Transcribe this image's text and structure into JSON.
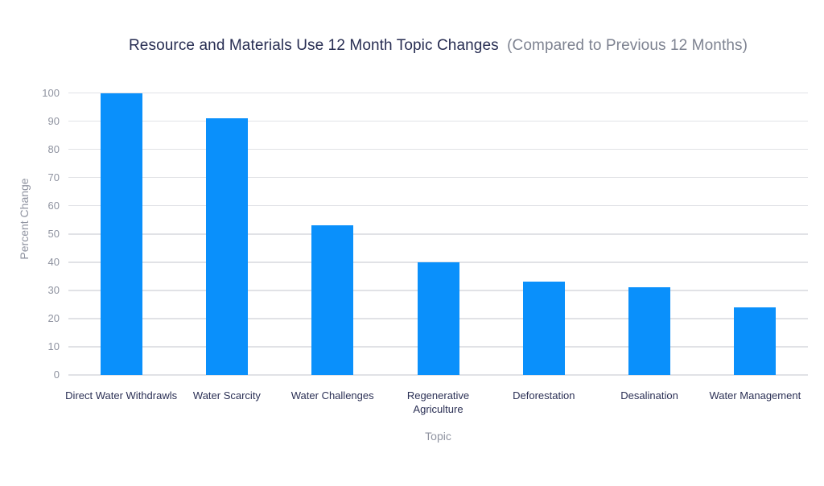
{
  "title": {
    "main": "Resource and Materials Use 12 Month Topic Changes",
    "sub": "(Compared to Previous 12 Months)"
  },
  "chart_data": {
    "type": "bar",
    "title": "Resource and Materials Use 12 Month Topic Changes (Compared to Previous 12 Months)",
    "categories": [
      "Direct Water Withdrawls",
      "Water Scarcity",
      "Water Challenges",
      "Regenerative Agriculture",
      "Deforestation",
      "Desalination",
      "Water Management"
    ],
    "values": [
      100,
      91,
      53,
      40,
      33,
      31,
      24
    ],
    "xlabel": "Topic",
    "ylabel": "Percent Change",
    "ylim": [
      0,
      100
    ],
    "yticks": [
      0,
      10,
      20,
      30,
      40,
      50,
      60,
      70,
      80,
      90,
      100
    ],
    "grid": true,
    "legend": "none",
    "bar_color": "#0a90fb"
  },
  "colors": {
    "bar": "#0a90fb",
    "title_main": "#272d52",
    "title_sub": "#7e8391",
    "axis_text": "#8f93a0",
    "category_text": "#2b3055",
    "gridline": "#e1e2e6",
    "background": "#ffffff"
  }
}
